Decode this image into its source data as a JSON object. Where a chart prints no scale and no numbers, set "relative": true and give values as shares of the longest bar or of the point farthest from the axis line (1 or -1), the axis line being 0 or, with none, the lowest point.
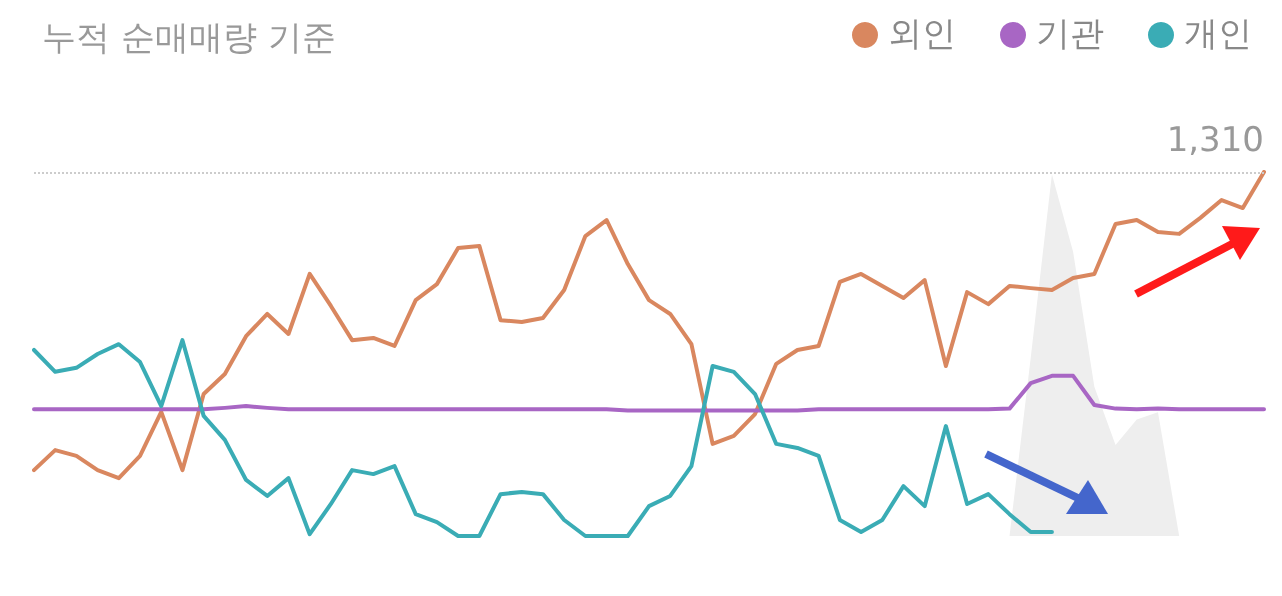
{
  "chart_data": {
    "type": "line",
    "title": "누적 순매매량 기준",
    "relative": true,
    "legend": "top right",
    "marker": "none",
    "line_style": "solid",
    "grid": false,
    "annotations": [
      "1,310"
    ],
    "categories": [
      null,
      null,
      null,
      null,
      null,
      null,
      null,
      null,
      null,
      null,
      null,
      null,
      null,
      null,
      null,
      null,
      null,
      null,
      null,
      null,
      null,
      null,
      null,
      null,
      null,
      null,
      null,
      null,
      null,
      null,
      null,
      null,
      null,
      null,
      null,
      null,
      null,
      null,
      null,
      null,
      null,
      null,
      null,
      null,
      null,
      null,
      null,
      null,
      null,
      null,
      null,
      null,
      null,
      null,
      null,
      null,
      null,
      null,
      null
    ],
    "series": [
      {
        "name": "외인",
        "color": "#d9875f",
        "values": [
          0.181,
          0.236,
          0.22,
          0.181,
          0.159,
          0.22,
          0.341,
          0.181,
          0.39,
          0.445,
          0.549,
          0.61,
          0.555,
          0.72,
          0.632,
          0.538,
          0.544,
          0.522,
          0.648,
          0.692,
          0.791,
          0.797,
          0.593,
          0.588,
          0.599,
          0.676,
          0.824,
          0.868,
          0.747,
          0.648,
          0.61,
          0.527,
          0.253,
          0.275,
          0.335,
          0.473,
          0.511,
          0.522,
          0.698,
          0.72,
          0.687,
          0.654,
          0.703,
          0.467,
          0.67,
          0.637,
          0.687,
          0.681,
          0.676,
          0.709,
          0.72,
          0.857,
          0.868,
          0.835,
          0.83,
          0.874,
          0.923,
          0.901,
          1
        ]
      },
      {
        "name": "기관",
        "color": "#a866c4",
        "values": [
          0.348,
          0.348,
          0.348,
          0.348,
          0.348,
          0.348,
          0.348,
          0.348,
          0.348,
          0.352,
          0.357,
          0.352,
          0.348,
          0.348,
          0.348,
          0.348,
          0.348,
          0.348,
          0.348,
          0.348,
          0.348,
          0.348,
          0.348,
          0.348,
          0.348,
          0.348,
          0.348,
          0.348,
          0.345,
          0.345,
          0.345,
          0.345,
          0.345,
          0.345,
          0.345,
          0.345,
          0.345,
          0.348,
          0.348,
          0.348,
          0.348,
          0.348,
          0.348,
          0.348,
          0.348,
          0.348,
          0.35,
          0.42,
          0.44,
          0.44,
          0.36,
          0.35,
          0.348,
          0.35,
          0.348,
          0.348,
          0.348,
          0.348,
          0.348
        ]
      },
      {
        "name": "개인",
        "color": "#3aacb5",
        "values": [
          0.511,
          0.451,
          0.462,
          0.5,
          0.527,
          0.478,
          0.357,
          0.538,
          0.33,
          0.264,
          0.154,
          0.11,
          0.159,
          0.005,
          0.088,
          0.181,
          0.17,
          0.192,
          0.06,
          0.038,
          0,
          0,
          0.115,
          0.121,
          0.115,
          0.044,
          0,
          0,
          0,
          0.082,
          0.11,
          0.192,
          0.467,
          0.451,
          0.39,
          0.253,
          0.242,
          0.22,
          0.044,
          0.011,
          0.044,
          0.137,
          0.082,
          0.302,
          0.088,
          0.115,
          0.06,
          0.011,
          0.011,
          null,
          null,
          null,
          null,
          null,
          null,
          null,
          null,
          null,
          null
        ]
      },
      {
        "type": "area",
        "color": "#eeeeee",
        "values": [
          null,
          null,
          null,
          null,
          null,
          null,
          null,
          null,
          null,
          null,
          null,
          null,
          null,
          null,
          null,
          null,
          null,
          null,
          null,
          null,
          null,
          null,
          null,
          null,
          null,
          null,
          null,
          null,
          null,
          null,
          null,
          null,
          null,
          null,
          null,
          null,
          null,
          null,
          null,
          null,
          null,
          null,
          null,
          null,
          null,
          null,
          0,
          0.49,
          0.994,
          0.78,
          0.41,
          0.25,
          0.32,
          0.34,
          0,
          null,
          null,
          null,
          null
        ]
      }
    ],
    "ref_lines": [
      {
        "axis": "y",
        "value": 1,
        "color": "#cccccc",
        "line_style": "dotted"
      }
    ]
  }
}
